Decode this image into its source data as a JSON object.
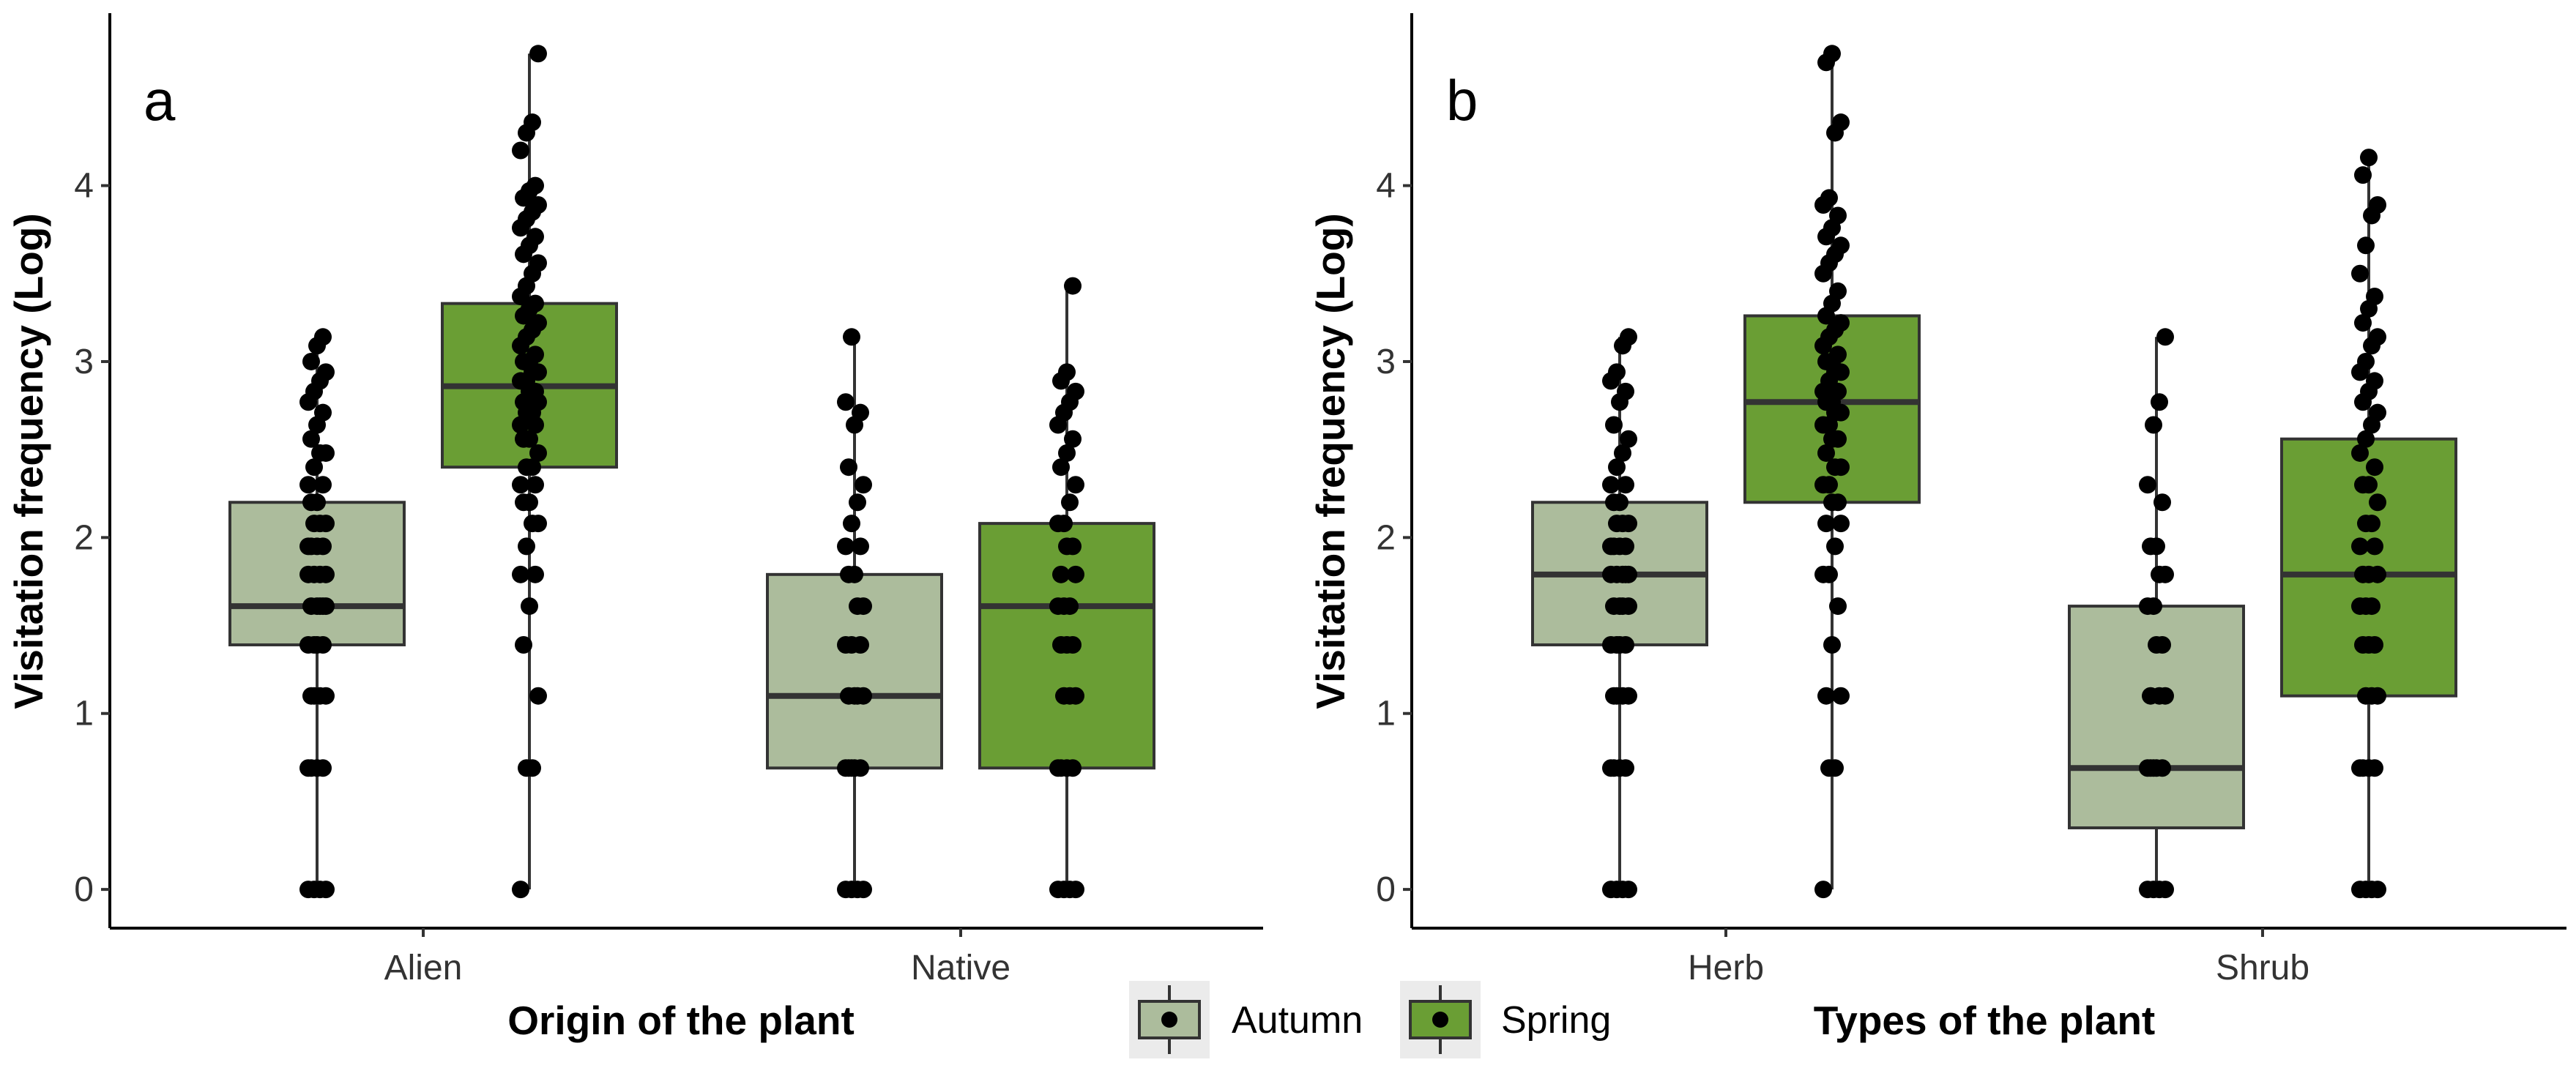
{
  "colors": {
    "autumn": "#acbc9c",
    "spring": "#6a9e34",
    "box_line": "#333333",
    "points": "#000000",
    "axis": "#000000",
    "legend_key_bg": "#ebebeb"
  },
  "legend": {
    "items": [
      {
        "label": "Autumn",
        "color": "#acbc9c"
      },
      {
        "label": "Spring",
        "color": "#6a9e34"
      }
    ]
  },
  "chart_data": [
    {
      "type": "box",
      "panel_tag": "a",
      "title": "",
      "xlabel": "Origin of the plant",
      "ylabel": "Visitation frequency (Log)",
      "ylim": [
        -0.22,
        4.98
      ],
      "yticks": [
        0,
        1,
        2,
        3,
        4
      ],
      "categories": [
        "Alien",
        "Native"
      ],
      "groups": [
        {
          "category": "Alien",
          "season": "Autumn",
          "box": {
            "lower_whisker": 0,
            "q1": 1.39,
            "median": 1.61,
            "q3": 2.2,
            "upper_whisker": 3.14
          },
          "points": [
            0,
            0,
            0,
            0,
            0.69,
            0.69,
            0.69,
            0.69,
            1.1,
            1.1,
            1.1,
            1.1,
            1.39,
            1.39,
            1.39,
            1.39,
            1.61,
            1.61,
            1.61,
            1.61,
            1.61,
            1.79,
            1.79,
            1.79,
            1.79,
            1.95,
            1.95,
            1.95,
            1.95,
            2.08,
            2.08,
            2.08,
            2.2,
            2.2,
            2.3,
            2.3,
            2.4,
            2.48,
            2.48,
            2.56,
            2.64,
            2.71,
            2.77,
            2.83,
            2.89,
            2.94,
            3.0,
            3.09,
            3.14
          ]
        },
        {
          "category": "Alien",
          "season": "Spring",
          "box": {
            "lower_whisker": 0,
            "q1": 2.4,
            "median": 2.86,
            "q3": 3.33,
            "upper_whisker": 4.75
          },
          "points": [
            0,
            0.69,
            0.69,
            1.1,
            1.39,
            1.61,
            1.79,
            1.79,
            1.95,
            2.08,
            2.08,
            2.2,
            2.2,
            2.3,
            2.3,
            2.4,
            2.4,
            2.48,
            2.56,
            2.56,
            2.64,
            2.64,
            2.71,
            2.71,
            2.77,
            2.77,
            2.83,
            2.83,
            2.89,
            2.89,
            2.94,
            2.94,
            3.0,
            3.0,
            3.04,
            3.09,
            3.14,
            3.18,
            3.22,
            3.26,
            3.3,
            3.33,
            3.37,
            3.43,
            3.5,
            3.56,
            3.61,
            3.66,
            3.71,
            3.76,
            3.81,
            3.85,
            3.89,
            3.93,
            3.97,
            4.0,
            4.2,
            4.3,
            4.36,
            4.75
          ]
        },
        {
          "category": "Native",
          "season": "Autumn",
          "box": {
            "lower_whisker": 0,
            "q1": 0.69,
            "median": 1.1,
            "q3": 1.79,
            "upper_whisker": 3.14
          },
          "points": [
            0,
            0,
            0,
            0,
            0.69,
            0.69,
            0.69,
            0.69,
            0.69,
            1.1,
            1.1,
            1.1,
            1.1,
            1.39,
            1.39,
            1.39,
            1.61,
            1.61,
            1.79,
            1.79,
            1.95,
            1.95,
            2.08,
            2.2,
            2.3,
            2.4,
            2.64,
            2.71,
            2.77,
            3.14
          ]
        },
        {
          "category": "Native",
          "season": "Spring",
          "box": {
            "lower_whisker": 0,
            "q1": 0.69,
            "median": 1.61,
            "q3": 2.08,
            "upper_whisker": 3.43
          },
          "points": [
            0,
            0,
            0,
            0,
            0.69,
            0.69,
            0.69,
            0.69,
            1.1,
            1.1,
            1.1,
            1.39,
            1.39,
            1.39,
            1.61,
            1.61,
            1.61,
            1.79,
            1.79,
            1.95,
            1.95,
            2.08,
            2.08,
            2.2,
            2.3,
            2.4,
            2.48,
            2.56,
            2.64,
            2.71,
            2.77,
            2.83,
            2.89,
            2.94,
            3.43
          ]
        }
      ]
    },
    {
      "type": "box",
      "panel_tag": "b",
      "title": "",
      "xlabel": "Types of the plant",
      "ylabel": "Visitation frequency (Log)",
      "ylim": [
        -0.22,
        4.98
      ],
      "yticks": [
        0,
        1,
        2,
        3,
        4
      ],
      "categories": [
        "Herb",
        "Shrub"
      ],
      "groups": [
        {
          "category": "Herb",
          "season": "Autumn",
          "box": {
            "lower_whisker": 0,
            "q1": 1.39,
            "median": 1.79,
            "q3": 2.2,
            "upper_whisker": 3.14
          },
          "points": [
            0,
            0,
            0,
            0,
            0.69,
            0.69,
            0.69,
            0.69,
            1.1,
            1.1,
            1.1,
            1.1,
            1.39,
            1.39,
            1.39,
            1.39,
            1.61,
            1.61,
            1.61,
            1.61,
            1.79,
            1.79,
            1.79,
            1.79,
            1.79,
            1.95,
            1.95,
            1.95,
            1.95,
            2.08,
            2.08,
            2.08,
            2.2,
            2.2,
            2.3,
            2.3,
            2.4,
            2.48,
            2.56,
            2.64,
            2.77,
            2.83,
            2.89,
            2.94,
            3.09,
            3.14
          ]
        },
        {
          "category": "Herb",
          "season": "Spring",
          "box": {
            "lower_whisker": 0,
            "q1": 2.2,
            "median": 2.77,
            "q3": 3.26,
            "upper_whisker": 4.75
          },
          "points": [
            0,
            0.69,
            0.69,
            1.1,
            1.1,
            1.39,
            1.61,
            1.79,
            1.79,
            1.95,
            2.08,
            2.08,
            2.2,
            2.2,
            2.3,
            2.3,
            2.4,
            2.4,
            2.48,
            2.56,
            2.56,
            2.64,
            2.64,
            2.71,
            2.71,
            2.77,
            2.77,
            2.83,
            2.83,
            2.89,
            2.94,
            2.94,
            3.0,
            3.0,
            3.04,
            3.09,
            3.14,
            3.18,
            3.22,
            3.26,
            3.33,
            3.4,
            3.5,
            3.56,
            3.61,
            3.66,
            3.71,
            3.76,
            3.83,
            3.89,
            3.93,
            4.3,
            4.36,
            4.7,
            4.75
          ]
        },
        {
          "category": "Shrub",
          "season": "Autumn",
          "box": {
            "lower_whisker": 0,
            "q1": 0.35,
            "median": 0.69,
            "q3": 1.61,
            "upper_whisker": 3.14
          },
          "points": [
            0,
            0,
            0,
            0,
            0.69,
            0.69,
            0.69,
            0.69,
            0.69,
            1.1,
            1.1,
            1.1,
            1.39,
            1.39,
            1.61,
            1.61,
            1.79,
            1.79,
            1.95,
            1.95,
            2.2,
            2.3,
            2.64,
            2.77,
            3.14
          ]
        },
        {
          "category": "Shrub",
          "season": "Spring",
          "box": {
            "lower_whisker": 0,
            "q1": 1.1,
            "median": 1.79,
            "q3": 2.56,
            "upper_whisker": 4.16
          },
          "points": [
            0,
            0,
            0,
            0,
            0.69,
            0.69,
            0.69,
            0.69,
            1.1,
            1.1,
            1.1,
            1.39,
            1.39,
            1.39,
            1.61,
            1.61,
            1.61,
            1.79,
            1.79,
            1.79,
            1.95,
            1.95,
            2.08,
            2.08,
            2.2,
            2.3,
            2.3,
            2.4,
            2.48,
            2.56,
            2.64,
            2.71,
            2.77,
            2.83,
            2.89,
            2.94,
            3.0,
            3.09,
            3.14,
            3.22,
            3.3,
            3.37,
            3.5,
            3.66,
            3.83,
            3.89,
            4.06,
            4.16
          ]
        }
      ]
    }
  ]
}
